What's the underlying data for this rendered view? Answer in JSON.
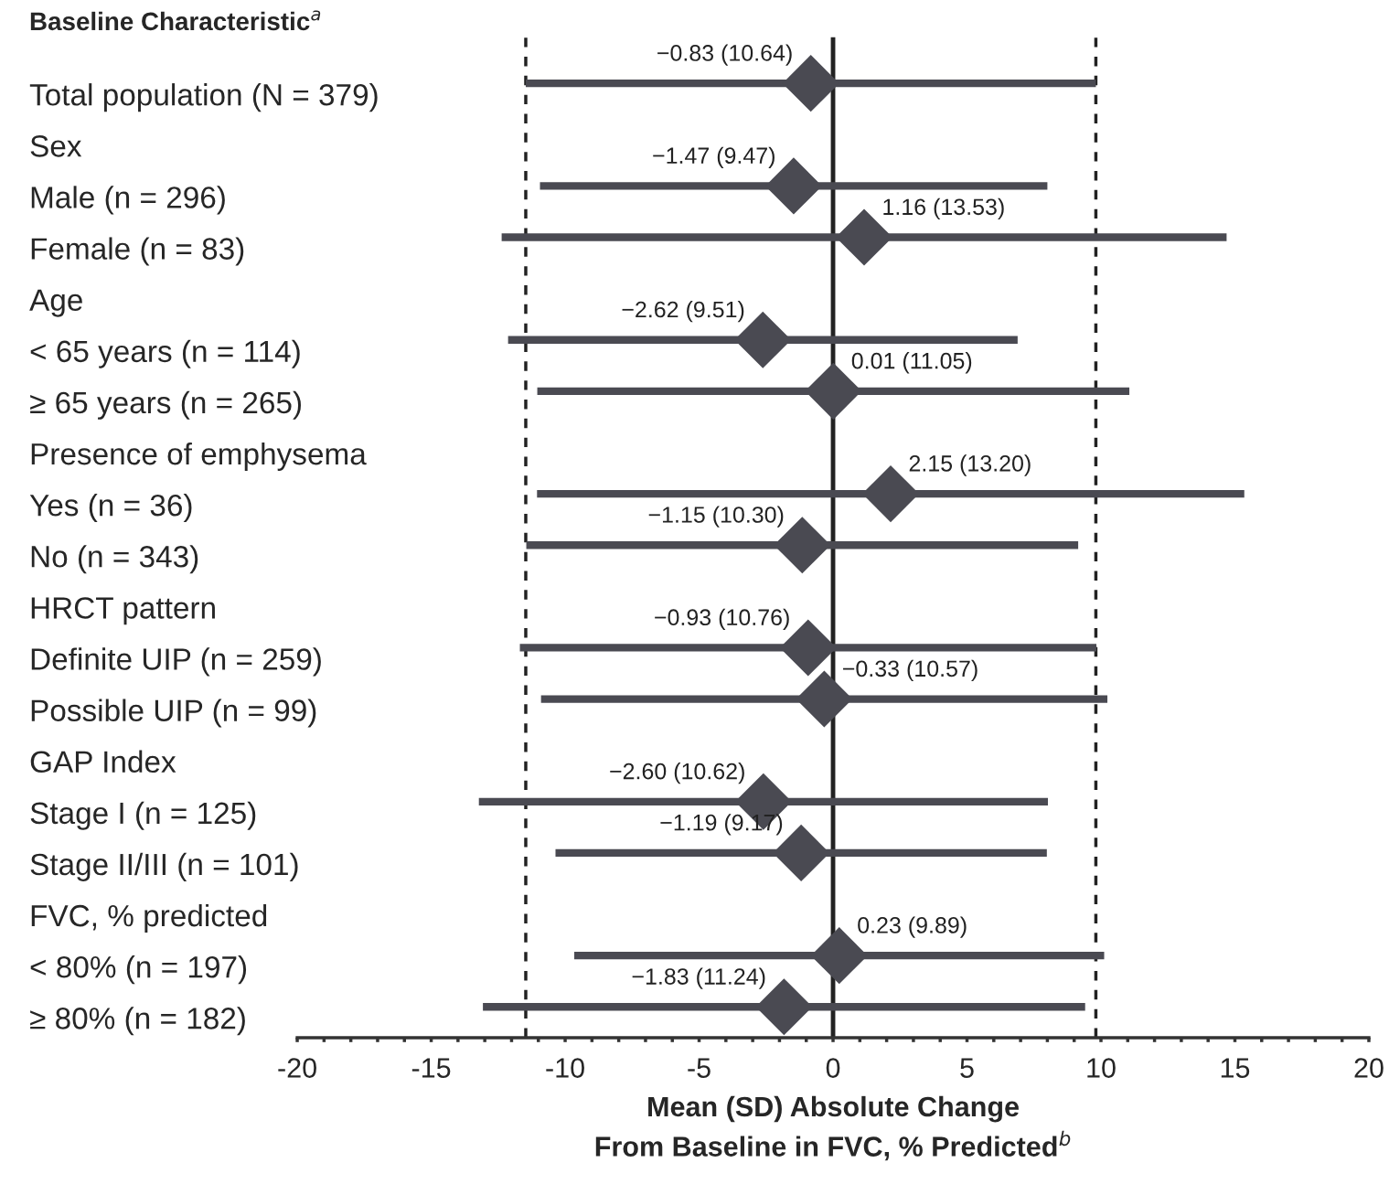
{
  "chart_data": {
    "type": "scatter",
    "orientation": "horizontal",
    "title": "Baseline Characteristic$^{a}$",
    "xlabel": "Mean (SD) Absolute Change\nFrom Baseline in FVC, % Predicted$^{b}$",
    "categories": [
      "Total population (N = 379)",
      "Sex",
      "Male (n = 296)",
      "Female (n = 83)",
      "Age",
      "< 65 years (n = 114)",
      "≥ 65 years (n = 265)",
      "Presence of emphysema",
      "Yes (n = 36)",
      "No (n = 343)",
      "HRCT pattern",
      "Definite UIP (n = 259)",
      "Possible UIP (n = 99)",
      "GAP Index",
      "Stage I (n = 125)",
      "Stage II/III (n = 101)",
      "FVC, % predicted",
      "< 80% (n = 197)",
      "≥ 80% (n = 182)"
    ],
    "values": [
      -0.83,
      null,
      -1.47,
      1.16,
      null,
      -2.62,
      0.01,
      null,
      2.15,
      -1.15,
      null,
      -0.93,
      -0.33,
      null,
      -2.6,
      -1.19,
      null,
      0.23,
      -1.83
    ],
    "errors": [
      10.64,
      null,
      9.47,
      13.53,
      null,
      9.51,
      11.05,
      null,
      13.2,
      10.3,
      null,
      10.76,
      10.57,
      null,
      10.62,
      9.17,
      null,
      9.89,
      11.24
    ],
    "value_labels": [
      "−0.83 (10.64)",
      null,
      "−1.47 (9.47)",
      "1.16 (13.53)",
      null,
      "−2.62 (9.51)",
      "0.01 (11.05)",
      null,
      "2.15 (13.20)",
      "−1.15 (10.30)",
      null,
      "−0.93 (10.76)",
      "−0.33 (10.57)",
      null,
      "−2.60 (10.62)",
      "−1.19 (9.17)",
      null,
      "0.23 (9.89)",
      "−1.83 (11.24)"
    ],
    "color": "#4a4a52",
    "marker": "diamond",
    "xlim": [
      -20,
      20
    ],
    "xticks": [
      -20,
      {
        "value": -19,
        "label": null
      },
      {
        "value": -18,
        "label": null
      },
      {
        "value": -17,
        "label": null
      },
      {
        "value": -16,
        "label": null
      },
      -15,
      {
        "value": -14,
        "label": null
      },
      {
        "value": -13,
        "label": null
      },
      {
        "value": -12,
        "label": null
      },
      {
        "value": -11,
        "label": null
      },
      -10,
      {
        "value": -9,
        "label": null
      },
      {
        "value": -8,
        "label": null
      },
      {
        "value": -7,
        "label": null
      },
      {
        "value": -6,
        "label": null
      },
      -5,
      {
        "value": -4,
        "label": null
      },
      {
        "value": -3,
        "label": null
      },
      {
        "value": -2,
        "label": null
      },
      {
        "value": -1,
        "label": null
      },
      0,
      {
        "value": 1,
        "label": null
      },
      {
        "value": 2,
        "label": null
      },
      {
        "value": 3,
        "label": null
      },
      {
        "value": 4,
        "label": null
      },
      5,
      {
        "value": 6,
        "label": null
      },
      {
        "value": 7,
        "label": null
      },
      {
        "value": 8,
        "label": null
      },
      {
        "value": 9,
        "label": null
      },
      10,
      {
        "value": 11,
        "label": null
      },
      {
        "value": 12,
        "label": null
      },
      {
        "value": 13,
        "label": null
      },
      {
        "value": 14,
        "label": null
      },
      15,
      {
        "value": 16,
        "label": null
      },
      {
        "value": 17,
        "label": null
      },
      {
        "value": 18,
        "label": null
      },
      {
        "value": 19,
        "label": null
      },
      20
    ],
    "ref_lines": [
      {
        "axis": "x",
        "value": 0,
        "line_style": "solid"
      },
      {
        "axis": "x",
        "value": -11.47,
        "line_style": "dashed"
      },
      {
        "axis": "x",
        "value": 9.81,
        "line_style": "dashed"
      }
    ],
    "grid": false,
    "legend": false
  }
}
